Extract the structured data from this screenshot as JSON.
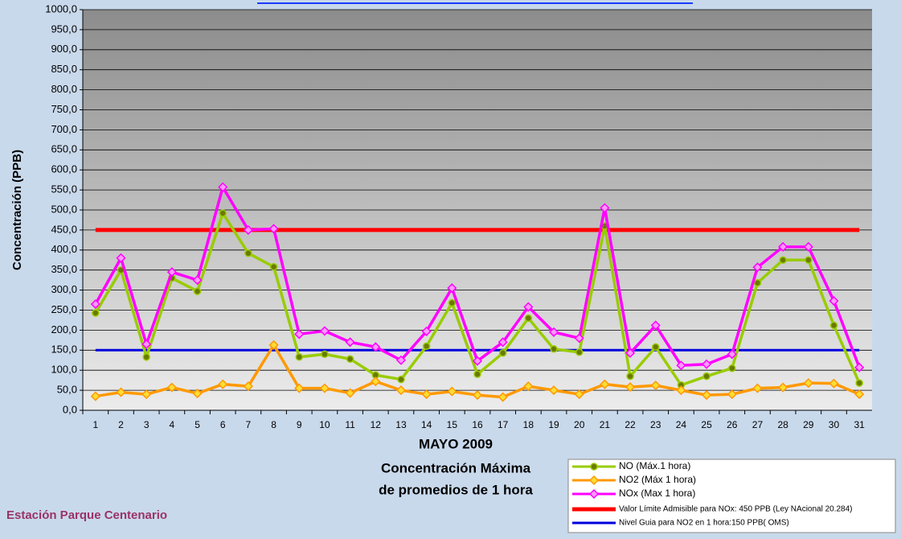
{
  "chart_data": {
    "type": "line",
    "categories": [
      "1",
      "2",
      "3",
      "4",
      "5",
      "6",
      "7",
      "8",
      "9",
      "10",
      "11",
      "12",
      "13",
      "14",
      "15",
      "16",
      "17",
      "18",
      "19",
      "20",
      "21",
      "22",
      "23",
      "24",
      "25",
      "26",
      "27",
      "28",
      "29",
      "30",
      "31"
    ],
    "series": [
      {
        "name": "NO (Máx.1 hora)",
        "color": "#99cc00",
        "marker_color": "#6b7a00",
        "marker": "circle",
        "values": [
          243,
          350,
          133,
          330,
          297,
          492,
          392,
          358,
          133,
          140,
          128,
          88,
          77,
          160,
          268,
          90,
          143,
          230,
          153,
          145,
          460,
          85,
          158,
          63,
          85,
          105,
          318,
          375,
          375,
          212,
          68
        ]
      },
      {
        "name": "NO2 (Máx 1 hora)",
        "color": "#ff9900",
        "marker_color": "#ffdd33",
        "marker": "diamond",
        "values": [
          35,
          45,
          40,
          57,
          42,
          65,
          60,
          163,
          55,
          55,
          43,
          72,
          50,
          40,
          47,
          38,
          33,
          60,
          50,
          40,
          65,
          58,
          62,
          50,
          38,
          40,
          55,
          57,
          68,
          67,
          40
        ]
      },
      {
        "name": "NOx (Max 1 hora)",
        "color": "#ff00ff",
        "marker_color": "#ff99ff",
        "marker": "diamond",
        "values": [
          265,
          380,
          165,
          345,
          325,
          557,
          450,
          453,
          190,
          198,
          170,
          158,
          125,
          197,
          305,
          123,
          170,
          258,
          195,
          180,
          505,
          143,
          212,
          112,
          115,
          140,
          357,
          408,
          408,
          273,
          107
        ]
      }
    ],
    "reference_lines": [
      {
        "name": "Valor Límite Admisible para NOx: 450 PPB (Ley NAcional 20.284)",
        "color": "#ff0000",
        "value": 450
      },
      {
        "name": "Nivel Guia para NO2 en 1 hora:150 PPB( OMS)",
        "color": "#0000dd",
        "value": 150
      }
    ],
    "ylim": [
      0,
      1000
    ],
    "yticks": [
      {
        "value": 0,
        "label": "0,0"
      },
      {
        "value": 50,
        "label": "50,0"
      },
      {
        "value": 100,
        "label": "100,0"
      },
      {
        "value": 150,
        "label": "150,0"
      },
      {
        "value": 200,
        "label": "200,0"
      },
      {
        "value": 250,
        "label": "250,0"
      },
      {
        "value": 300,
        "label": "300,0"
      },
      {
        "value": 350,
        "label": "350,0"
      },
      {
        "value": 400,
        "label": "400,0"
      },
      {
        "value": 450,
        "label": "450,0"
      },
      {
        "value": 500,
        "label": "500,0"
      },
      {
        "value": 550,
        "label": "550,0"
      },
      {
        "value": 600,
        "label": "600,0"
      },
      {
        "value": 650,
        "label": "650,0"
      },
      {
        "value": 700,
        "label": "700,0"
      },
      {
        "value": 750,
        "label": "750,0"
      },
      {
        "value": 800,
        "label": "800,0"
      },
      {
        "value": 850,
        "label": "850,0"
      },
      {
        "value": 900,
        "label": "900,0"
      },
      {
        "value": 950,
        "label": "950,0"
      },
      {
        "value": 1000,
        "label": "1000,0"
      }
    ],
    "grid": true,
    "y_label": "Concentración  (PPB)",
    "x_label": "MAYO 2009",
    "subtitle_lines": [
      "Concentración Máxima",
      "de promedios de 1 hora"
    ],
    "station": "Estación Parque Centenario"
  }
}
